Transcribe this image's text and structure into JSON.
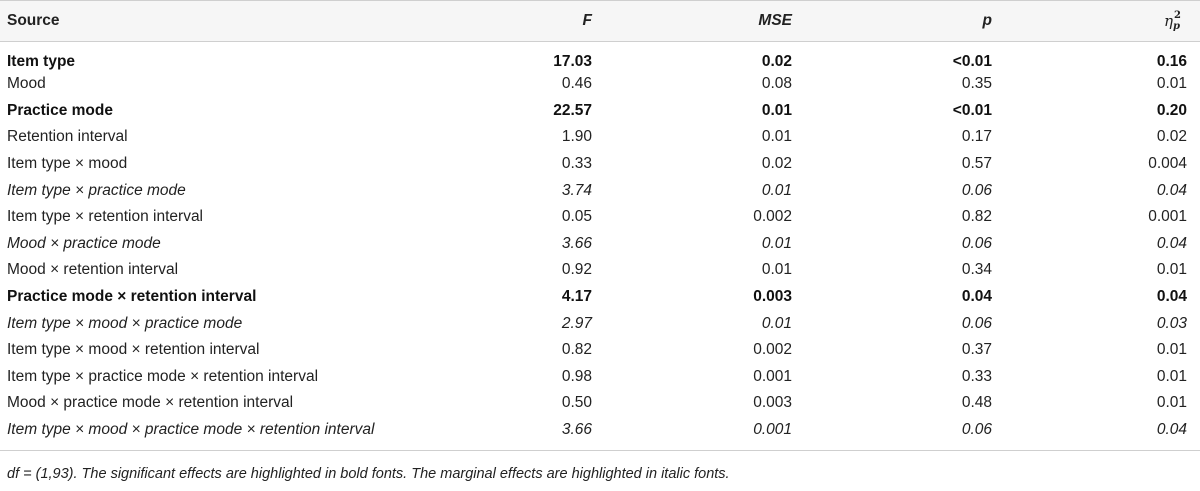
{
  "table": {
    "headers": {
      "source": "Source",
      "f": "F",
      "mse": "MSE",
      "p": "p",
      "eta_symbol": "η",
      "eta_sub": "p",
      "eta_sup": "2"
    },
    "rows": [
      {
        "source": "Item type",
        "f": "17.03",
        "mse": "0.02",
        "p": "<0.01",
        "eta": "0.16",
        "style": "bold"
      },
      {
        "source": "Mood",
        "f": "0.46",
        "mse": "0.08",
        "p": "0.35",
        "eta": "0.01",
        "style": "normal"
      },
      {
        "source": "Practice mode",
        "f": "22.57",
        "mse": "0.01",
        "p": "<0.01",
        "eta": "0.20",
        "style": "bold"
      },
      {
        "source": "Retention interval",
        "f": "1.90",
        "mse": "0.01",
        "p": "0.17",
        "eta": "0.02",
        "style": "normal"
      },
      {
        "source": "Item type × mood",
        "f": "0.33",
        "mse": "0.02",
        "p": "0.57",
        "eta": "0.004",
        "style": "normal"
      },
      {
        "source": "Item type × practice mode",
        "f": "3.74",
        "mse": "0.01",
        "p": "0.06",
        "eta": "0.04",
        "style": "italic"
      },
      {
        "source": "Item type × retention interval",
        "f": "0.05",
        "mse": "0.002",
        "p": "0.82",
        "eta": "0.001",
        "style": "normal"
      },
      {
        "source": "Mood × practice mode",
        "f": "3.66",
        "mse": "0.01",
        "p": "0.06",
        "eta": "0.04",
        "style": "italic"
      },
      {
        "source": "Mood × retention interval",
        "f": "0.92",
        "mse": "0.01",
        "p": "0.34",
        "eta": "0.01",
        "style": "normal"
      },
      {
        "source": "Practice mode × retention interval",
        "f": "4.17",
        "mse": "0.003",
        "p": "0.04",
        "eta": "0.04",
        "style": "bold"
      },
      {
        "source": "Item type × mood × practice mode",
        "f": "2.97",
        "mse": "0.01",
        "p": "0.06",
        "eta": "0.03",
        "style": "italic"
      },
      {
        "source": "Item type × mood × retention interval",
        "f": "0.82",
        "mse": "0.002",
        "p": "0.37",
        "eta": "0.01",
        "style": "normal"
      },
      {
        "source": "Item type × practice mode × retention interval",
        "f": "0.98",
        "mse": "0.001",
        "p": "0.33",
        "eta": "0.01",
        "style": "normal"
      },
      {
        "source": "Mood × practice mode × retention interval",
        "f": "0.50",
        "mse": "0.003",
        "p": "0.48",
        "eta": "0.01",
        "style": "normal"
      },
      {
        "source": "Item type × mood × practice mode × retention interval",
        "f": "3.66",
        "mse": "0.001",
        "p": "0.06",
        "eta": "0.04",
        "style": "italic"
      }
    ]
  },
  "footnote": "df = (1,93). The significant effects are highlighted in bold fonts. The marginal effects are highlighted in italic fonts."
}
